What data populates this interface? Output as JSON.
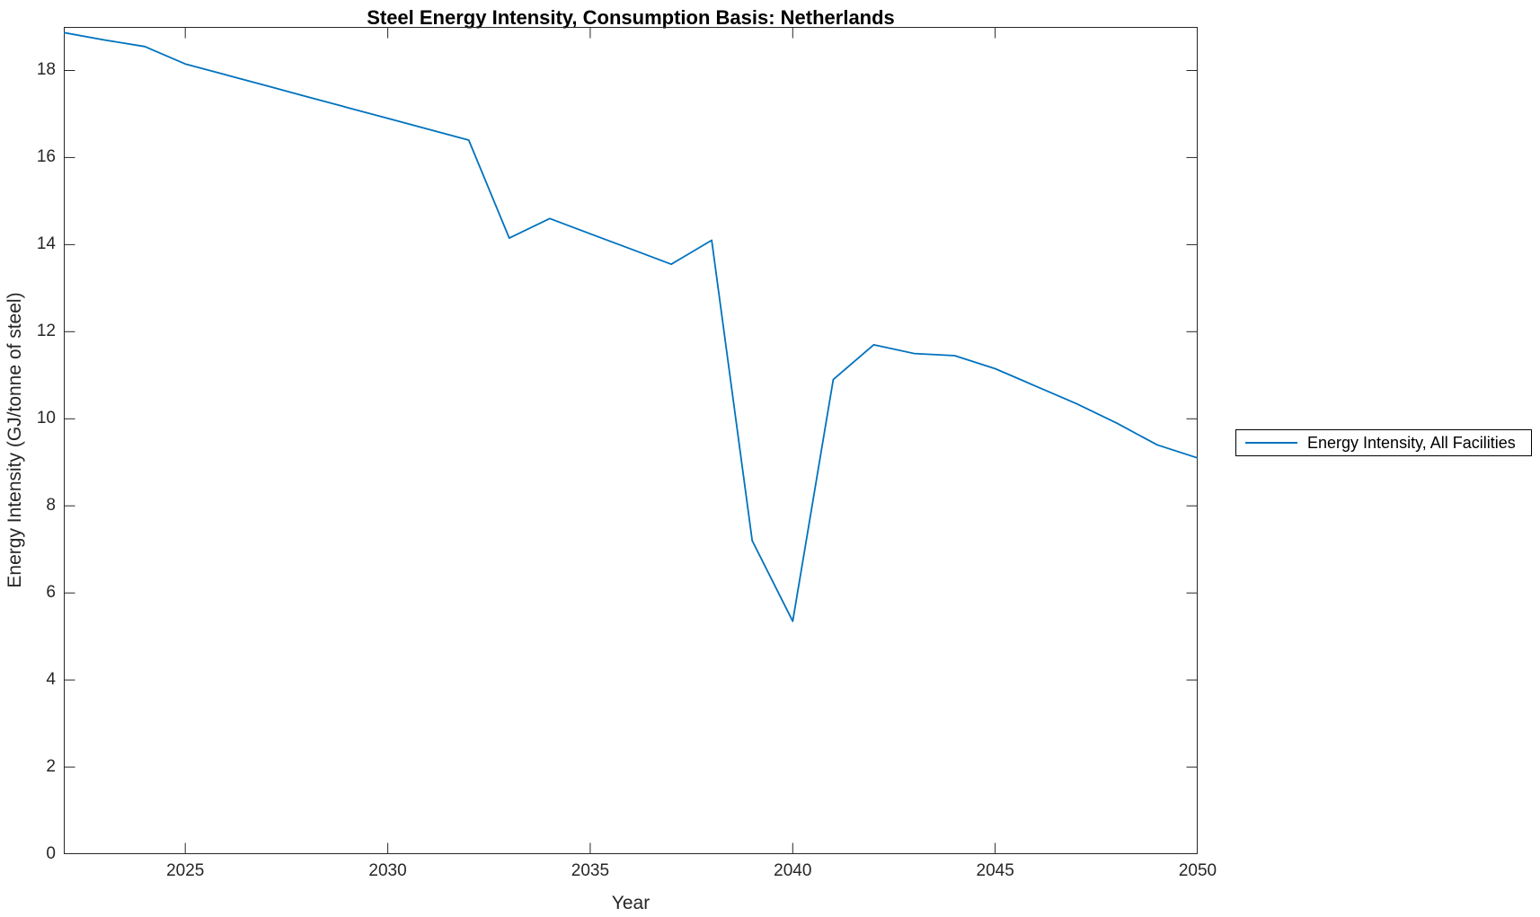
{
  "colors": {
    "line": "#0072BD",
    "axis": "#262626",
    "text": "#262626",
    "background": "#ffffff"
  },
  "chart_data": {
    "type": "line",
    "title": "Steel Energy Intensity, Consumption Basis: Netherlands",
    "xlabel": "Year",
    "ylabel": "Energy Intensity (GJ/tonne of steel)",
    "xlim": [
      2022,
      2050
    ],
    "ylim": [
      0,
      19
    ],
    "x_ticks": [
      2025,
      2030,
      2035,
      2040,
      2045,
      2050
    ],
    "y_ticks": [
      0,
      2,
      4,
      6,
      8,
      10,
      12,
      14,
      16,
      18
    ],
    "grid": false,
    "box": true,
    "tick_direction": "in",
    "legend_position": "outside-right",
    "legend": {
      "entries": [
        "Energy Intensity, All Facilities"
      ]
    },
    "series": [
      {
        "name": "Energy Intensity, All Facilities",
        "color": "#0072BD",
        "x": [
          2022,
          2023,
          2024,
          2025,
          2026,
          2027,
          2028,
          2029,
          2030,
          2031,
          2032,
          2033,
          2034,
          2035,
          2036,
          2037,
          2038,
          2039,
          2040,
          2041,
          2042,
          2043,
          2044,
          2045,
          2046,
          2047,
          2048,
          2049,
          2050
        ],
        "y": [
          18.87,
          18.7,
          18.55,
          18.15,
          17.9,
          17.65,
          17.4,
          17.15,
          16.9,
          16.65,
          16.4,
          14.15,
          14.6,
          14.25,
          13.9,
          13.55,
          14.1,
          7.2,
          5.35,
          10.9,
          11.7,
          11.5,
          11.45,
          11.15,
          10.75,
          10.35,
          9.9,
          9.4,
          9.1
        ]
      }
    ]
  }
}
